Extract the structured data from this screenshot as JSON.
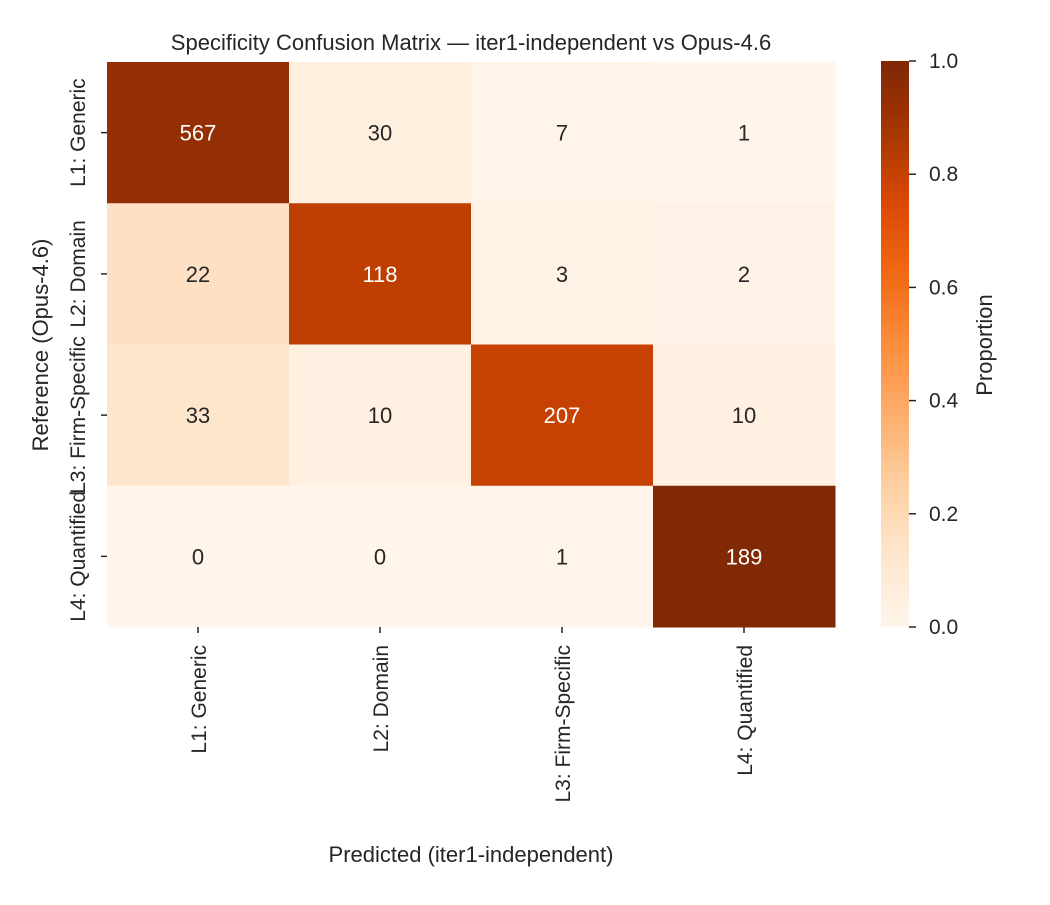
{
  "chart_data": {
    "type": "heatmap",
    "title": "Specificity Confusion Matrix — iter1-independent vs Opus-4.6",
    "xlabel": "Predicted (iter1-independent)",
    "ylabel": "Reference (Opus-4.6)",
    "x_categories": [
      "L1: Generic",
      "L2: Domain",
      "L3: Firm-Specific",
      "L4: Quantified"
    ],
    "y_categories": [
      "L1: Generic",
      "L2: Domain",
      "L3: Firm-Specific",
      "L4: Quantified"
    ],
    "counts": [
      [
        567,
        30,
        7,
        1
      ],
      [
        22,
        118,
        3,
        2
      ],
      [
        33,
        10,
        207,
        10
      ],
      [
        0,
        0,
        1,
        189
      ]
    ],
    "color_normalization": "row proportion",
    "colormap": "Oranges",
    "colorbar": {
      "label": "Proportion",
      "range": [
        0.0,
        1.0
      ],
      "ticks": [
        "0.0",
        "0.2",
        "0.4",
        "0.6",
        "0.8",
        "1.0"
      ]
    }
  }
}
